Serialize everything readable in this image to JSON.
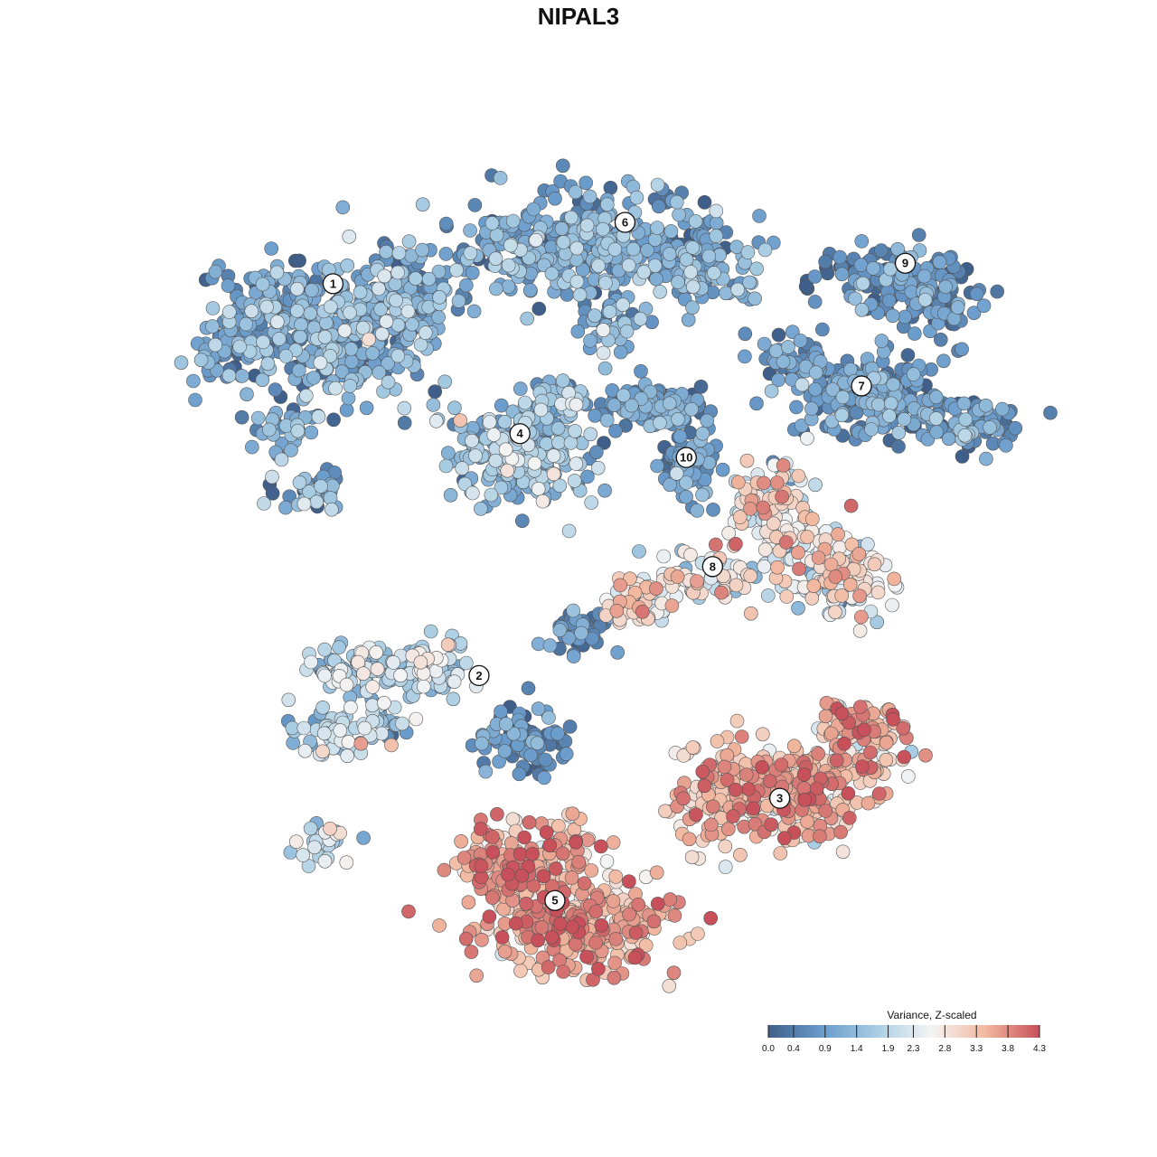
{
  "chart_data": {
    "type": "scatter",
    "title": "NIPAL3",
    "xlabel": "",
    "ylabel": "",
    "grid": false,
    "legend_position": "bottom-right",
    "color_scale": {
      "title": "Variance, Z-scaled",
      "min": 0.0,
      "max": 4.3,
      "ticks": [
        0.0,
        0.4,
        0.9,
        1.4,
        1.9,
        2.3,
        2.8,
        3.3,
        3.8,
        4.3
      ],
      "tick_labels": [
        "0.0",
        "0.4",
        "0.9",
        "1.4",
        "1.9",
        "2.3",
        "2.8",
        "3.3",
        "3.8",
        "4.3"
      ],
      "colors": [
        "#3f5f8a",
        "#6a9ccc",
        "#a9cde3",
        "#f4f4f4",
        "#f2b9a0",
        "#c7505a"
      ]
    },
    "clusters": [
      {
        "label": "1",
        "x": -8.5,
        "y": 8.2,
        "mean": 1.0,
        "spread": 0.55
      },
      {
        "label": "2",
        "x": -3.5,
        "y": -3.3,
        "mean": 1.9,
        "spread": 0.55
      },
      {
        "label": "3",
        "x": 6.8,
        "y": -6.9,
        "mean": 3.3,
        "spread": 0.55
      },
      {
        "label": "4",
        "x": -2.1,
        "y": 3.8,
        "mean": 1.3,
        "spread": 0.55
      },
      {
        "label": "5",
        "x": -0.9,
        "y": -9.9,
        "mean": 3.5,
        "spread": 0.5
      },
      {
        "label": "6",
        "x": 1.5,
        "y": 10.0,
        "mean": 1.0,
        "spread": 0.5
      },
      {
        "label": "7",
        "x": 9.6,
        "y": 5.2,
        "mean": 0.8,
        "spread": 0.45
      },
      {
        "label": "8",
        "x": 4.5,
        "y": -0.1,
        "mean": 2.6,
        "spread": 0.7
      },
      {
        "label": "9",
        "x": 11.1,
        "y": 8.8,
        "mean": 0.6,
        "spread": 0.45
      },
      {
        "label": "10",
        "x": 3.6,
        "y": 3.1,
        "mean": 0.8,
        "spread": 0.45
      }
    ]
  }
}
